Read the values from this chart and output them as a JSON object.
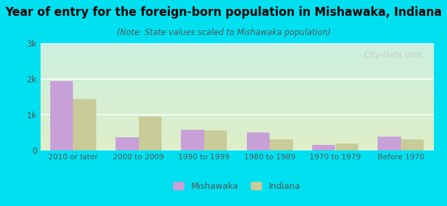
{
  "title": "Year of entry for the foreign-born population in Mishawaka, Indiana",
  "subtitle": "(Note: State values scaled to Mishawaka population)",
  "categories": [
    "2010 or later",
    "2000 to 2009",
    "1990 to 1999",
    "1980 to 1989",
    "1970 to 1979",
    "Before 1970"
  ],
  "mishawaka_values": [
    1950,
    370,
    570,
    500,
    155,
    380
  ],
  "indiana_values": [
    1450,
    950,
    560,
    310,
    195,
    310
  ],
  "mishawaka_color": "#c8a0d8",
  "indiana_color": "#c8cc99",
  "background_outer": "#00e0f0",
  "background_inner_top": "#ccf0e0",
  "background_inner_bottom": "#deeec8",
  "ylim": [
    0,
    3000
  ],
  "yticks": [
    0,
    1000,
    2000,
    3000
  ],
  "ytick_labels": [
    "0",
    "1k",
    "2k",
    "3k"
  ],
  "bar_width": 0.35,
  "title_fontsize": 12,
  "subtitle_fontsize": 8.5,
  "watermark": "  City-Data.com"
}
